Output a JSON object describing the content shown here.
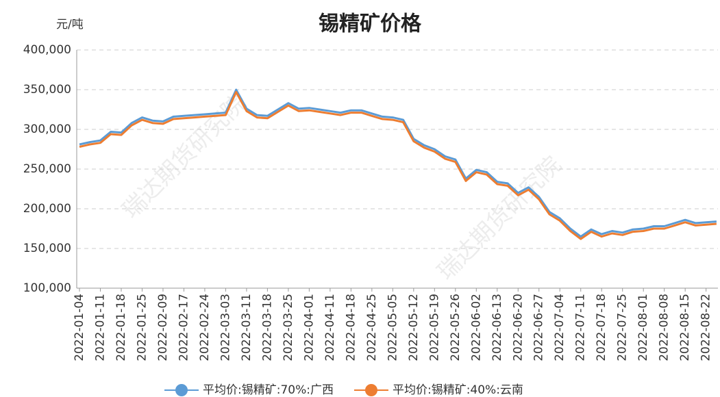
{
  "chart_data": {
    "type": "line",
    "title": "锡精矿价格",
    "y_axis_label": "元/吨",
    "watermark": "瑞达期货研究院",
    "categories": [
      "2022-01-04",
      null,
      "2022-01-11",
      null,
      "2022-01-18",
      null,
      "2022-01-25",
      null,
      "2022-02-09",
      null,
      "2022-02-17",
      null,
      "2022-02-24",
      null,
      "2022-03-03",
      null,
      "2022-03-11",
      null,
      "2022-03-18",
      null,
      "2022-03-25",
      null,
      "2022-04-01",
      null,
      "2022-04-11",
      null,
      "2022-04-18",
      null,
      "2022-04-25",
      null,
      "2022-05-05",
      null,
      "2022-05-12",
      null,
      "2022-05-19",
      null,
      "2022-05-26",
      null,
      "2022-06-02",
      null,
      "2022-06-13",
      null,
      "2022-06-20",
      null,
      "2022-06-27",
      null,
      "2022-07-04",
      null,
      "2022-07-11",
      null,
      "2022-07-18",
      null,
      "2022-07-25",
      null,
      "2022-08-01",
      null,
      "2022-08-08",
      null,
      "2022-08-15",
      null,
      "2022-08-22",
      null
    ],
    "series": [
      {
        "name": "平均价:锡精矿:70%:广西",
        "color": "#5b9bd5",
        "values": [
          281000,
          284000,
          286000,
          297000,
          296000,
          308000,
          315000,
          311000,
          310000,
          316000,
          317000,
          318000,
          319000,
          320000,
          321000,
          350000,
          326000,
          318000,
          317000,
          325000,
          333000,
          326000,
          327000,
          325000,
          323000,
          321000,
          324000,
          324000,
          320000,
          316000,
          315000,
          312000,
          288000,
          280000,
          275000,
          266000,
          262000,
          238000,
          249000,
          246000,
          234000,
          232000,
          220000,
          227000,
          215000,
          196000,
          188000,
          175000,
          165000,
          174000,
          168000,
          172000,
          170000,
          174000,
          175000,
          178000,
          178000,
          182000,
          186000,
          182000,
          183000,
          184000
        ]
      },
      {
        "name": "平均价:锡精矿:40%:云南",
        "color": "#ed7d31",
        "values": [
          278000,
          281000,
          283000,
          294000,
          293000,
          305000,
          312000,
          308000,
          307000,
          313000,
          314000,
          315000,
          316000,
          317000,
          318000,
          347000,
          323000,
          315000,
          314000,
          322000,
          330000,
          323000,
          324000,
          322000,
          320000,
          318000,
          321000,
          321000,
          317000,
          313000,
          312000,
          309000,
          285000,
          277000,
          272000,
          263000,
          259000,
          235000,
          246000,
          243000,
          231000,
          229000,
          217000,
          224000,
          212000,
          193000,
          185000,
          172000,
          162000,
          171000,
          165000,
          169000,
          167000,
          171000,
          172000,
          175000,
          175000,
          179000,
          183000,
          179000,
          180000,
          181000
        ]
      }
    ],
    "ylim": [
      100000,
      400000
    ],
    "yticks": [
      {
        "value": 100000,
        "label": "100,000"
      },
      {
        "value": 150000,
        "label": "150,000"
      },
      {
        "value": 200000,
        "label": "200,000"
      },
      {
        "value": 250000,
        "label": "250,000"
      },
      {
        "value": 300000,
        "label": "300,000"
      },
      {
        "value": 350000,
        "label": "350,000"
      },
      {
        "value": 400000,
        "label": "400,000"
      }
    ],
    "grid": true,
    "legend": "bottom"
  }
}
